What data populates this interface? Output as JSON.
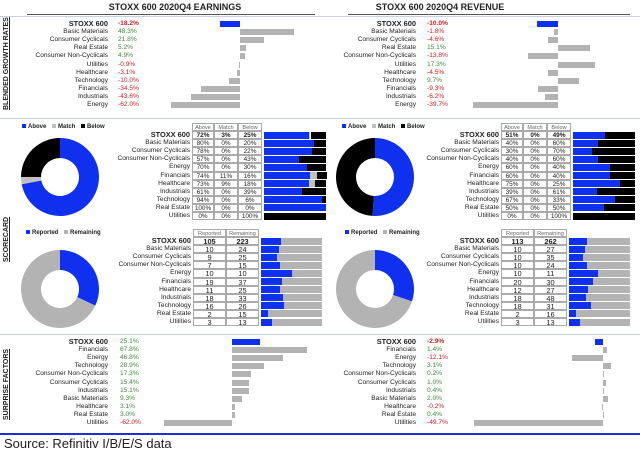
{
  "titles": {
    "earnings": "STOXX 600 2020Q4 EARNINGS",
    "revenue": "STOXX 600 2020Q4 REVENUE"
  },
  "section_labels": {
    "growth": "BLENDED GROWTH RATES",
    "scorecard": "SCORECARD",
    "surprise": "SURPRISE FACTORS"
  },
  "colors": {
    "highlight": "#1030f0",
    "bar": "#b3b3b3",
    "above": "#1030f0",
    "match": "#c0c0c0",
    "below": "#000000",
    "positive": "#3f8a3a",
    "negative": "#d02020"
  },
  "legend": {
    "above": "Above",
    "match": "Match",
    "below": "Below",
    "reported": "Reported",
    "remaining": "Remaining"
  },
  "table_headers": {
    "above": "Above",
    "match": "Match",
    "below": "Below",
    "reported": "Reported",
    "remaining": "Remaining"
  },
  "chart_data": [
    {
      "type": "bar",
      "id": "earnings_growth",
      "unit": "%",
      "categories": [
        "STOXX 600",
        "Basic Materials",
        "Consumer Cyclicals",
        "Real Estate",
        "Consumer Non-Cyclicals",
        "Utilities",
        "Healthcare",
        "Technology",
        "Financials",
        "Industrials",
        "Energy"
      ],
      "values": [
        -18.2,
        48.3,
        21.8,
        5.2,
        4.9,
        -0.9,
        -3.1,
        -10.0,
        -34.5,
        -43.6,
        -62.0
      ],
      "labels": [
        "-18.2%",
        "48.3%",
        "21.8%",
        "5.2%",
        "4.9%",
        "-0.9%",
        "-3.1%",
        "-10.0%",
        "-34.5%",
        "-43.6%",
        "-62.0%"
      ]
    },
    {
      "type": "bar",
      "id": "revenue_growth",
      "unit": "%",
      "categories": [
        "STOXX 600",
        "Basic Materials",
        "Consumer Cyclicals",
        "Real Estate",
        "Consumer Non-Cyclicals",
        "Utilities",
        "Healthcare",
        "Technology",
        "Financials",
        "Industrials",
        "Energy"
      ],
      "values": [
        -10.0,
        -1.8,
        -4.6,
        15.1,
        -13.8,
        17.3,
        -4.5,
        9.7,
        -9.3,
        -6.2,
        -39.7
      ],
      "labels": [
        "-10.0%",
        "-1.8%",
        "-4.6%",
        "15.1%",
        "-13.8%",
        "17.3%",
        "-4.5%",
        "9.7%",
        "-9.3%",
        "-6.2%",
        "-39.7%"
      ]
    },
    {
      "type": "table",
      "id": "earnings_scorecard",
      "categories": [
        "STOXX 600",
        "Basic Materials",
        "Consumer Cyclicals",
        "Consumer Non-Cyclicals",
        "Energy",
        "Financials",
        "Healthcare",
        "Industrials",
        "Technology",
        "Real Estate",
        "Utilities"
      ],
      "above": [
        72,
        80,
        78,
        57,
        70,
        74,
        73,
        61,
        94,
        100,
        0
      ],
      "match": [
        3,
        0,
        0,
        0,
        0,
        11,
        9,
        0,
        0,
        0,
        0
      ],
      "below": [
        25,
        20,
        22,
        43,
        30,
        16,
        18,
        39,
        6,
        0,
        100
      ]
    },
    {
      "type": "table",
      "id": "revenue_scorecard",
      "categories": [
        "STOXX 600",
        "Basic Materials",
        "Consumer Cyclicals",
        "Consumer Non-Cyclicals",
        "Energy",
        "Financials",
        "Healthcare",
        "Industrials",
        "Technology",
        "Real Estate",
        "Utilities"
      ],
      "above": [
        51,
        40,
        30,
        40,
        60,
        60,
        75,
        39,
        67,
        50,
        0
      ],
      "match": [
        0,
        0,
        0,
        0,
        0,
        0,
        0,
        0,
        0,
        0,
        0
      ],
      "below": [
        49,
        60,
        70,
        60,
        40,
        40,
        25,
        61,
        33,
        50,
        100
      ]
    },
    {
      "type": "table",
      "id": "earnings_reported",
      "categories": [
        "STOXX 600",
        "Basic Materials",
        "Consumer Cyclicals",
        "Consumer Non-Cyclicals",
        "Energy",
        "Financials",
        "Healthcare",
        "Industrials",
        "Technology",
        "Real Estate",
        "Utilities"
      ],
      "reported": [
        105,
        10,
        9,
        7,
        10,
        19,
        11,
        18,
        16,
        2,
        3
      ],
      "remaining": [
        223,
        24,
        25,
        15,
        10,
        37,
        25,
        33,
        26,
        15,
        13
      ]
    },
    {
      "type": "table",
      "id": "revenue_reported",
      "categories": [
        "STOXX 600",
        "Basic Materials",
        "Consumer Cyclicals",
        "Consumer Non-Cyclicals",
        "Energy",
        "Financials",
        "Healthcare",
        "Industrials",
        "Technology",
        "Real Estate",
        "Utilities"
      ],
      "reported": [
        113,
        10,
        10,
        10,
        10,
        20,
        12,
        18,
        18,
        2,
        3
      ],
      "remaining": [
        262,
        27,
        35,
        24,
        11,
        30,
        27,
        48,
        31,
        16,
        13
      ]
    },
    {
      "type": "bar",
      "id": "earnings_surprise",
      "unit": "%",
      "categories": [
        "STOXX 600",
        "Financials",
        "Energy",
        "Technology",
        "Consumer Non-Cyclicals",
        "Consumer Cyclicals",
        "Industrials",
        "Basic Materials",
        "Healthcare",
        "Real Estate",
        "Utilities"
      ],
      "values": [
        25.1,
        67.8,
        46.8,
        28.9,
        17.3,
        15.4,
        15.1,
        9.3,
        3.1,
        3.0,
        -62.0
      ],
      "labels": [
        "25.1%",
        "67.8%",
        "46.8%",
        "28.9%",
        "17.3%",
        "15.4%",
        "15.1%",
        "9.3%",
        "3.1%",
        "3.0%",
        "-62.0%"
      ]
    },
    {
      "type": "bar",
      "id": "revenue_surprise",
      "unit": "%",
      "categories": [
        "STOXX 600",
        "Financials",
        "Energy",
        "Technology",
        "Consumer Non-Cyclicals",
        "Consumer Cyclicals",
        "Industrials",
        "Basic Materials",
        "Healthcare",
        "Real Estate",
        "Utilities"
      ],
      "values": [
        -2.9,
        1.4,
        -12.1,
        3.1,
        0.2,
        1.0,
        0.4,
        2.0,
        -0.2,
        0.4,
        -49.7
      ],
      "labels": [
        "-2.9%",
        "1.4%",
        "-12.1%",
        "3.1%",
        "0.2%",
        "1.0%",
        "0.4%",
        "2.0%",
        "-0.2%",
        "0.4%",
        "-49.7%"
      ]
    }
  ],
  "source": "Source: Refinitiv I/B/E/S data"
}
